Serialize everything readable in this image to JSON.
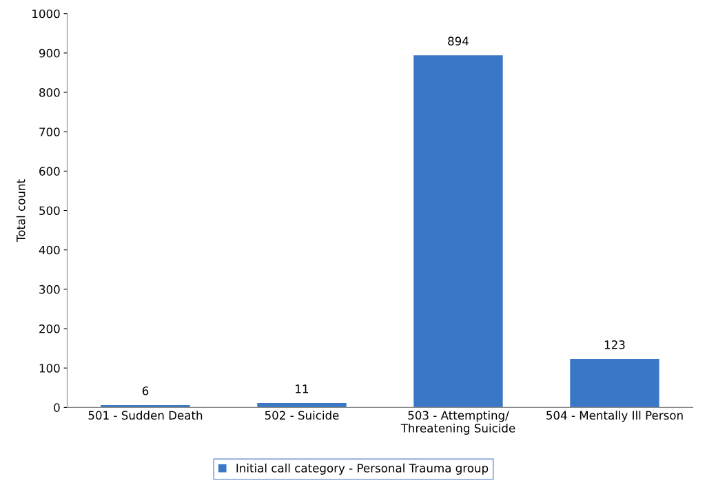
{
  "chart_data": {
    "type": "bar",
    "ylabel": "Total count",
    "categories": [
      "501 - Sudden Death",
      "502 - Suicide",
      "503 - Attempting/\nThreatening Suicide",
      "504 - Mentally Ill Person"
    ],
    "series": [
      {
        "name": "Initial call category - Personal Trauma group",
        "color": "#3a78c6",
        "values": [
          6,
          11,
          894,
          123
        ]
      }
    ],
    "ylim": [
      0,
      1000
    ],
    "yticks": [
      0,
      100,
      200,
      300,
      400,
      500,
      600,
      700,
      800,
      900,
      1000
    ],
    "data_labels": true,
    "legend": "bottom",
    "grid": false
  }
}
